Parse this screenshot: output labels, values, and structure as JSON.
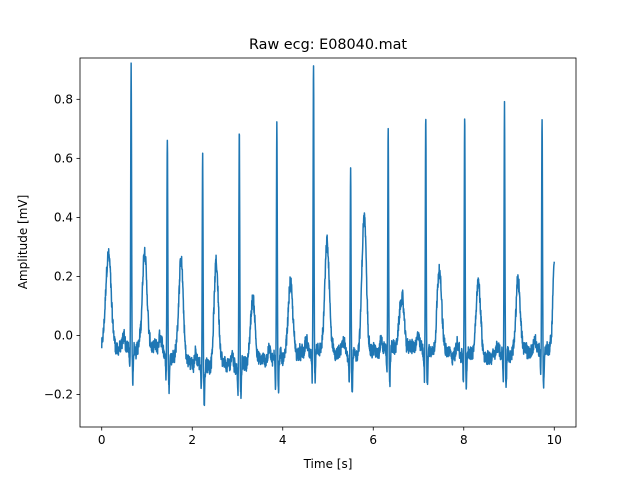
{
  "chart_data": {
    "type": "line",
    "title": "Raw ecg: E08040.mat",
    "xlabel": "Time [s]",
    "ylabel": "Amplitude [mV]",
    "xlim": [
      -0.48,
      10.48
    ],
    "ylim": [
      -0.31,
      0.94
    ],
    "xticks": [
      {
        "value": 0,
        "label": "0"
      },
      {
        "value": 2,
        "label": "2"
      },
      {
        "value": 4,
        "label": "4"
      },
      {
        "value": 6,
        "label": "6"
      },
      {
        "value": 8,
        "label": "8"
      },
      {
        "value": 10,
        "label": "10"
      }
    ],
    "yticks": [
      {
        "value": -0.2,
        "label": "−0.2"
      },
      {
        "value": 0.0,
        "label": "0.0"
      },
      {
        "value": 0.2,
        "label": "0.2"
      },
      {
        "value": 0.4,
        "label": "0.4"
      },
      {
        "value": 0.6,
        "label": "0.6"
      },
      {
        "value": 0.8,
        "label": "0.8"
      }
    ],
    "grid": false,
    "series": [
      {
        "color": "#1f77b4",
        "x_start": 0,
        "x_end": 10,
        "baseline": -0.05,
        "beats": [
          {
            "t": 0.65,
            "r": 0.885,
            "t_wave": 0.27
          },
          {
            "t": 1.45,
            "r": 0.68,
            "t_wave": 0.28
          },
          {
            "t": 2.23,
            "r": 0.65,
            "t_wave": 0.3
          },
          {
            "t": 3.04,
            "r": 0.72,
            "t_wave": 0.16
          },
          {
            "t": 3.87,
            "r": 0.735,
            "t_wave": 0.2
          },
          {
            "t": 4.68,
            "r": 0.91,
            "t_wave": 0.32
          },
          {
            "t": 5.5,
            "r": 0.56,
            "t_wave": 0.41
          },
          {
            "t": 6.33,
            "r": 0.66,
            "t_wave": 0.12
          },
          {
            "t": 7.16,
            "r": 0.74,
            "t_wave": 0.24
          },
          {
            "t": 8.02,
            "r": 0.745,
            "t_wave": 0.21
          },
          {
            "t": 8.9,
            "r": 0.77,
            "t_wave": 0.2
          },
          {
            "t": 9.73,
            "r": 0.73,
            "t_wave": 0.23
          }
        ],
        "leading_t_wave": {
          "t": 0.15,
          "value": 0.27
        },
        "end_value": 0.25,
        "min_value": -0.25
      }
    ]
  }
}
